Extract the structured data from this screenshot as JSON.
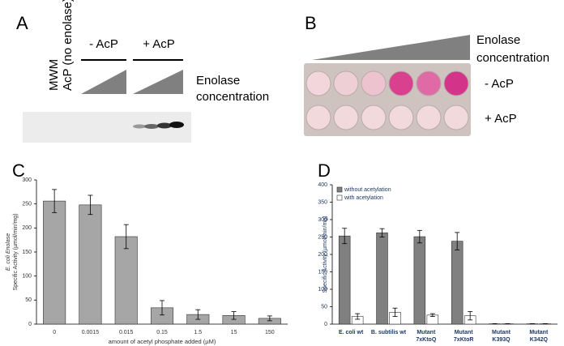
{
  "panels": {
    "a": {
      "label": "A",
      "lanes": [
        "MWM",
        "AcP (no enolase)"
      ],
      "groups": [
        "- AcP",
        "+ AcP"
      ],
      "gradient_label": [
        "Enolase",
        "concentration"
      ]
    },
    "b": {
      "label": "B",
      "gradient_label": [
        "Enolase",
        "concentration"
      ],
      "rows": [
        "- AcP",
        "+ AcP"
      ]
    },
    "c": {
      "label": "C"
    },
    "d": {
      "label": "D"
    }
  },
  "chart_data": [
    {
      "type": "bar",
      "y_label": [
        "E. coli Enolase",
        "Specific Activity (µmol/min/mg)"
      ],
      "x_label": "amount of acetyl phosphate added (µM)",
      "categories": [
        "0",
        "0.0015",
        "0.015",
        "0.15",
        "1.5",
        "15",
        "150"
      ],
      "series": [
        {
          "color": "#a6a6a6",
          "values": [
            256,
            248,
            182,
            34,
            20,
            18,
            12
          ],
          "errors": [
            24,
            20,
            25,
            15,
            10,
            8,
            5
          ]
        }
      ],
      "ylim": [
        0,
        300
      ],
      "yticks": [
        0,
        50,
        100,
        150,
        200,
        250,
        300
      ]
    },
    {
      "type": "bar",
      "y_label": [
        "Specific Activity (µmol/min/mg)"
      ],
      "categories": [
        "E. coli wt",
        "B. subtilis wt",
        "Mutant\n7xKtoQ",
        "Mutant\n7xKtoR",
        "Mutant\nK393Q",
        "Mutant\nK342Q"
      ],
      "series": [
        {
          "name": "without acetylation",
          "color": "#808080",
          "values": [
            253,
            262,
            251,
            238,
            1,
            1
          ],
          "errors": [
            22,
            12,
            18,
            25,
            0,
            0
          ]
        },
        {
          "name": "with acetylation",
          "color": "#ffffff",
          "values": [
            22,
            34,
            26,
            24,
            1,
            1
          ],
          "errors": [
            8,
            12,
            4,
            12,
            0,
            0
          ]
        }
      ],
      "ylim": [
        0,
        400
      ],
      "yticks": [
        0,
        50,
        100,
        150,
        200,
        250,
        300,
        350,
        400
      ],
      "legend": "top-left"
    }
  ]
}
